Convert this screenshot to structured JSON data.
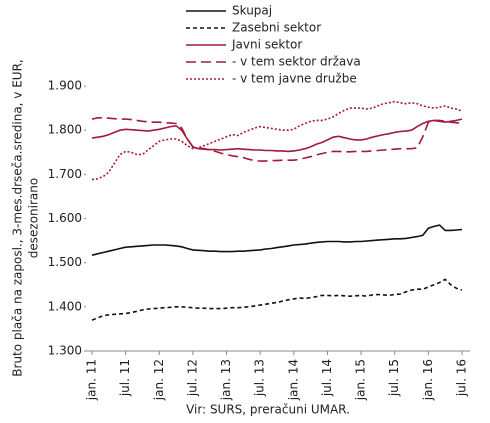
{
  "chart_data": {
    "type": "line",
    "ylabel": [
      "Bruto plača na zaposl., 3-mes.drseča.sredina, v EUR,",
      "desezonirano"
    ],
    "source": "Vir: SURS, preračuni UMAR.",
    "categories": [
      "jan. 11",
      null,
      null,
      null,
      null,
      null,
      "jul. 11",
      null,
      null,
      null,
      null,
      null,
      "jan. 12",
      null,
      null,
      null,
      null,
      null,
      "jul. 12",
      null,
      null,
      null,
      null,
      null,
      "jan. 13",
      null,
      null,
      null,
      null,
      null,
      "jul. 13",
      null,
      null,
      null,
      null,
      null,
      "jan. 14",
      null,
      null,
      null,
      null,
      null,
      "jul. 14",
      null,
      null,
      null,
      null,
      null,
      "jan. 15",
      null,
      null,
      null,
      null,
      null,
      "jul. 15",
      null,
      null,
      null,
      null,
      null,
      "jan. 16",
      null,
      null,
      null,
      null,
      null,
      "jul. 16"
    ],
    "ylim": [
      1300,
      1900
    ],
    "yticks": [
      {
        "value": 1300,
        "label": "1.300"
      },
      {
        "value": 1400,
        "label": "1.400"
      },
      {
        "value": 1500,
        "label": "1.500"
      },
      {
        "value": 1600,
        "label": "1.600"
      },
      {
        "value": 1700,
        "label": "1.700"
      },
      {
        "value": 1800,
        "label": "1.800"
      },
      {
        "value": 1900,
        "label": "1.900"
      }
    ],
    "legend": "top",
    "series": [
      {
        "name": "Skupaj",
        "color": "#111111",
        "dash": "solid",
        "values": [
          1517,
          1520,
          1523,
          1526,
          1529,
          1532,
          1535,
          1536,
          1537,
          1538,
          1539,
          1540,
          1540,
          1540,
          1539,
          1538,
          1536,
          1532,
          1529,
          1528,
          1527,
          1526,
          1526,
          1525,
          1525,
          1525,
          1526,
          1526,
          1527,
          1528,
          1529,
          1531,
          1532,
          1534,
          1536,
          1538,
          1540,
          1541,
          1542,
          1544,
          1546,
          1547,
          1548,
          1548,
          1548,
          1547,
          1547,
          1548,
          1548,
          1549,
          1550,
          1551,
          1552,
          1553,
          1554,
          1554,
          1555,
          1557,
          1559,
          1562,
          1578,
          1582,
          1585,
          1573,
          1573,
          1574,
          1575
        ]
      },
      {
        "name": "Zasebni sektor",
        "color": "#111111",
        "dash": "dashed",
        "values": [
          1370,
          1375,
          1380,
          1382,
          1383,
          1384,
          1385,
          1387,
          1390,
          1393,
          1395,
          1396,
          1397,
          1398,
          1399,
          1400,
          1400,
          1399,
          1398,
          1397,
          1397,
          1396,
          1396,
          1396,
          1397,
          1398,
          1398,
          1399,
          1400,
          1402,
          1404,
          1406,
          1408,
          1410,
          1413,
          1416,
          1418,
          1420,
          1419,
          1421,
          1423,
          1426,
          1426,
          1425,
          1426,
          1425,
          1424,
          1425,
          1426,
          1424,
          1427,
          1428,
          1427,
          1426,
          1428,
          1429,
          1434,
          1438,
          1440,
          1440,
          1445,
          1450,
          1455,
          1462,
          1450,
          1442,
          1438
        ]
      },
      {
        "name": "Javni sektor",
        "color": "#a31a3a",
        "dash": "solid",
        "values": [
          1782,
          1784,
          1786,
          1790,
          1795,
          1800,
          1802,
          1801,
          1800,
          1799,
          1798,
          1800,
          1802,
          1805,
          1808,
          1810,
          1800,
          1780,
          1762,
          1758,
          1757,
          1756,
          1756,
          1755,
          1756,
          1757,
          1758,
          1757,
          1756,
          1755,
          1755,
          1754,
          1754,
          1753,
          1753,
          1752,
          1753,
          1755,
          1758,
          1762,
          1768,
          1772,
          1778,
          1784,
          1786,
          1783,
          1780,
          1778,
          1778,
          1780,
          1784,
          1787,
          1790,
          1792,
          1795,
          1797,
          1798,
          1800,
          1808,
          1815,
          1820,
          1822,
          1820,
          1818,
          1820,
          1822,
          1825
        ]
      },
      {
        "name": "- v tem sektor država",
        "color": "#a31a3a",
        "dash": "long-dashed",
        "values": [
          1825,
          1828,
          1828,
          1827,
          1826,
          1825,
          1825,
          1824,
          1822,
          1820,
          1819,
          1818,
          1818,
          1817,
          1816,
          1815,
          1805,
          1780,
          1762,
          1760,
          1758,
          1755,
          1752,
          1748,
          1745,
          1742,
          1740,
          1738,
          1734,
          1731,
          1730,
          1730,
          1731,
          1731,
          1732,
          1732,
          1732,
          1734,
          1737,
          1740,
          1744,
          1747,
          1750,
          1752,
          1752,
          1751,
          1751,
          1752,
          1752,
          1752,
          1753,
          1754,
          1755,
          1756,
          1757,
          1758,
          1758,
          1758,
          1760,
          1785,
          1818,
          1822,
          1822,
          1820,
          1818,
          1817,
          1815
        ]
      },
      {
        "name": "- v tem javne družbe",
        "color": "#a31a3a",
        "dash": "dotted",
        "values": [
          1688,
          1690,
          1695,
          1705,
          1725,
          1745,
          1752,
          1750,
          1745,
          1745,
          1755,
          1765,
          1775,
          1778,
          1780,
          1780,
          1775,
          1765,
          1758,
          1760,
          1765,
          1770,
          1775,
          1780,
          1785,
          1790,
          1788,
          1795,
          1800,
          1805,
          1808,
          1806,
          1804,
          1802,
          1800,
          1800,
          1802,
          1810,
          1815,
          1820,
          1822,
          1822,
          1825,
          1830,
          1838,
          1845,
          1850,
          1850,
          1850,
          1848,
          1850,
          1855,
          1860,
          1862,
          1865,
          1862,
          1860,
          1862,
          1860,
          1855,
          1852,
          1850,
          1852,
          1855,
          1850,
          1848,
          1843
        ]
      }
    ]
  }
}
